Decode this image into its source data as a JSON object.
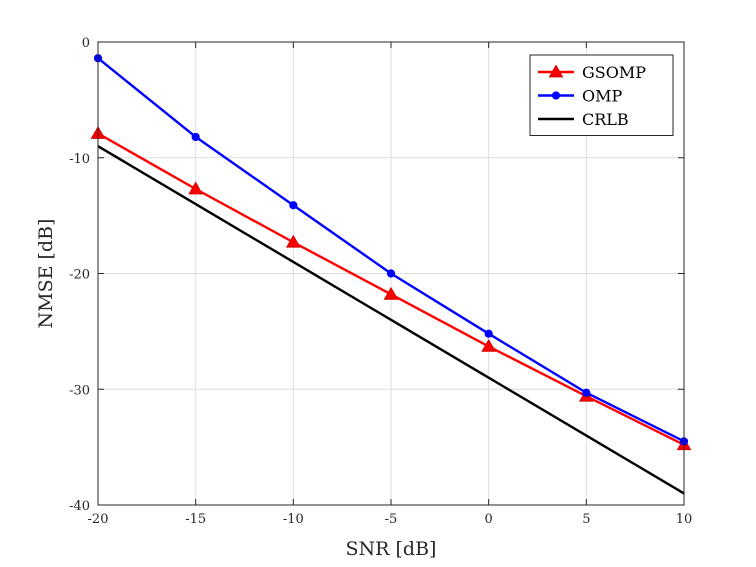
{
  "chart_data": {
    "type": "line",
    "title": "",
    "xlabel": "SNR [dB]",
    "ylabel": "NMSE [dB]",
    "xlim": [
      -20,
      10
    ],
    "ylim": [
      -40,
      0
    ],
    "xticks": [
      -20,
      -15,
      -10,
      -5,
      0,
      5,
      10
    ],
    "yticks": [
      0,
      -10,
      -20,
      -30,
      -40
    ],
    "xtick_labels": [
      "-20",
      "-15",
      "-10",
      "-5",
      "0",
      "5",
      "10"
    ],
    "ytick_labels": [
      "0",
      "-10",
      "-20",
      "-30",
      "-40"
    ],
    "grid": true,
    "legend_position": "top-right",
    "x": [
      -20,
      -15,
      -10,
      -5,
      0,
      5,
      10
    ],
    "series": [
      {
        "name": "GSOMP",
        "color": "#ff0000",
        "marker": "triangle",
        "values": [
          -7.9,
          -12.7,
          -17.3,
          -21.8,
          -26.3,
          -30.6,
          -34.8
        ]
      },
      {
        "name": "OMP",
        "color": "#0000ff",
        "marker": "circle",
        "values": [
          -1.4,
          -8.2,
          -14.1,
          -20.0,
          -25.2,
          -30.3,
          -34.5
        ]
      },
      {
        "name": "CRLB",
        "color": "#000000",
        "marker": "none",
        "values": [
          -9.0,
          -14.0,
          -19.0,
          -24.0,
          -29.0,
          -34.0,
          -39.0
        ]
      }
    ]
  }
}
